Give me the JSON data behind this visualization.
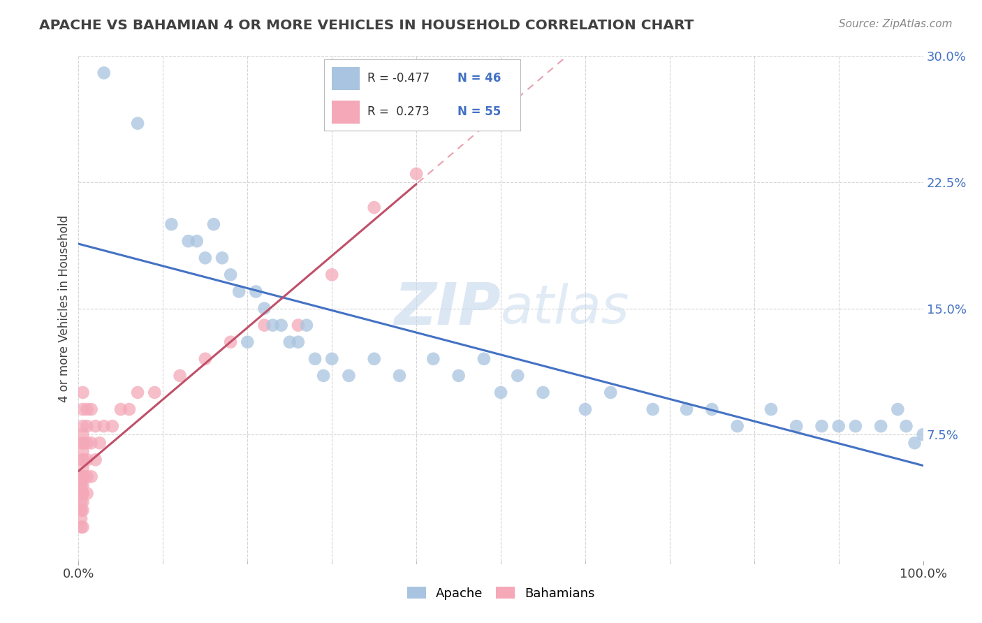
{
  "title": "APACHE VS BAHAMIAN 4 OR MORE VEHICLES IN HOUSEHOLD CORRELATION CHART",
  "source": "Source: ZipAtlas.com",
  "ylabel": "4 or more Vehicles in Household",
  "xlim": [
    0,
    100
  ],
  "ylim": [
    0,
    30
  ],
  "xtick_minor": [
    10,
    20,
    30,
    40,
    50,
    60,
    70,
    80,
    90
  ],
  "xtick_ends": [
    0,
    100
  ],
  "xtick_end_labels": [
    "0.0%",
    "100.0%"
  ],
  "yticks": [
    7.5,
    15.0,
    22.5,
    30.0
  ],
  "ytick_labels": [
    "7.5%",
    "15.0%",
    "22.5%",
    "30.0%"
  ],
  "watermark_zip": "ZIP",
  "watermark_atlas": "atlas",
  "legend_r_apache": "-0.477",
  "legend_n_apache": "46",
  "legend_r_bahamian": " 0.273",
  "legend_n_bahamian": "55",
  "apache_color": "#a8c4e0",
  "bahamian_color": "#f4a8b8",
  "apache_line_color": "#4472c4",
  "bahamian_line_color": "#c0506a",
  "bahamian_dashed_color": "#e8a0b0",
  "apache_x": [
    3,
    7,
    11,
    13,
    14,
    15,
    16,
    17,
    18,
    19,
    20,
    21,
    22,
    23,
    24,
    25,
    26,
    27,
    28,
    29,
    30,
    32,
    35,
    38,
    42,
    45,
    48,
    50,
    52,
    55,
    60,
    63,
    68,
    72,
    75,
    78,
    82,
    85,
    88,
    90,
    92,
    95,
    97,
    98,
    99,
    100
  ],
  "apache_y": [
    29,
    26,
    20,
    19,
    19,
    18,
    20,
    18,
    17,
    16,
    13,
    16,
    15,
    14,
    14,
    13,
    13,
    14,
    12,
    11,
    12,
    11,
    12,
    11,
    12,
    11,
    12,
    10,
    11,
    10,
    9,
    10,
    9,
    9,
    9,
    8,
    9,
    8,
    8,
    8,
    8,
    8,
    9,
    8,
    7,
    7.5
  ],
  "bahamian_x": [
    0.3,
    0.3,
    0.3,
    0.3,
    0.3,
    0.3,
    0.3,
    0.3,
    0.3,
    0.3,
    0.3,
    0.5,
    0.5,
    0.5,
    0.5,
    0.5,
    0.5,
    0.5,
    0.5,
    0.5,
    0.5,
    0.5,
    0.5,
    0.5,
    0.5,
    0.5,
    0.5,
    0.5,
    0.5,
    1,
    1,
    1,
    1,
    1,
    1,
    1.5,
    1.5,
    1.5,
    2,
    2,
    2.5,
    3,
    4,
    5,
    6,
    7,
    9,
    12,
    15,
    18,
    22,
    26,
    30,
    35,
    40
  ],
  "bahamian_y": [
    2,
    2.5,
    3,
    3,
    3.5,
    4,
    4,
    4.5,
    4.5,
    5,
    5,
    2,
    3,
    3.5,
    4,
    4,
    4.5,
    5,
    5,
    5.5,
    6,
    6,
    6.5,
    7,
    7,
    7.5,
    8,
    9,
    10,
    4,
    5,
    6,
    7,
    8,
    9,
    5,
    7,
    9,
    6,
    8,
    7,
    8,
    8,
    9,
    9,
    10,
    10,
    11,
    12,
    13,
    14,
    14,
    17,
    21,
    23
  ],
  "grid_color": "#d5d5d5",
  "background_color": "#ffffff",
  "title_color": "#404040",
  "source_color": "#888888"
}
